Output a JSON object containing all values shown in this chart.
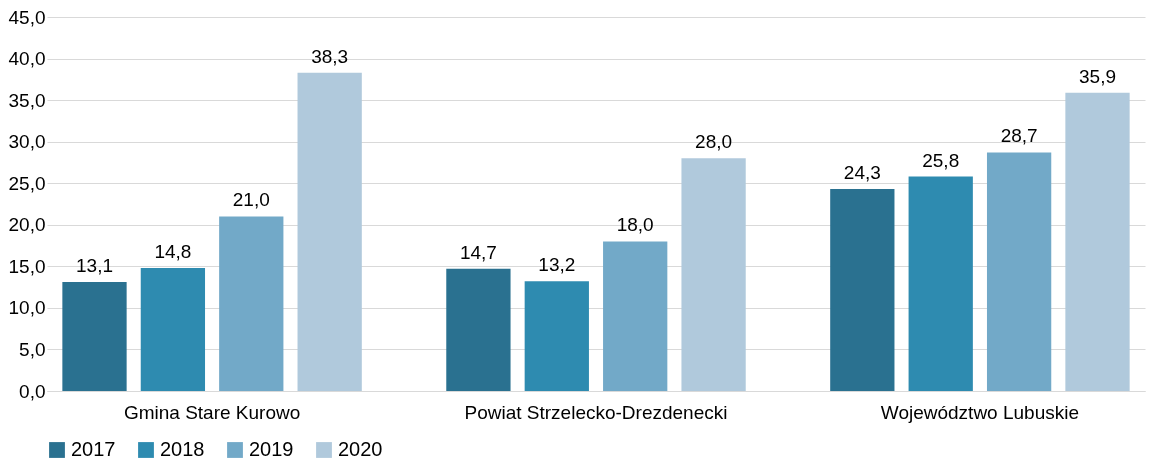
{
  "chart_data": {
    "type": "bar",
    "categories": [
      "Gmina Stare Kurowo",
      "Powiat Strzelecko-Drezdenecki",
      "Województwo Lubuskie"
    ],
    "series": [
      {
        "name": "2017",
        "color": "#2a7190",
        "values": [
          13.1,
          14.7,
          24.3
        ],
        "value_labels": [
          "13,1",
          "14,7",
          "24,3"
        ]
      },
      {
        "name": "2018",
        "color": "#2e8bb0",
        "values": [
          14.8,
          13.2,
          25.8
        ],
        "value_labels": [
          "14,8",
          "13,2",
          "25,8"
        ]
      },
      {
        "name": "2019",
        "color": "#72a9c8",
        "values": [
          21.0,
          18.0,
          28.7
        ],
        "value_labels": [
          "21,0",
          "18,0",
          "28,7"
        ]
      },
      {
        "name": "2020",
        "color": "#b0c9dc",
        "values": [
          38.3,
          28.0,
          35.9
        ],
        "value_labels": [
          "38,3",
          "28,0",
          "35,9"
        ]
      }
    ],
    "ylim": [
      0,
      45
    ],
    "yticks": [
      {
        "value": 0,
        "label": "0,0"
      },
      {
        "value": 5,
        "label": "5,0"
      },
      {
        "value": 10,
        "label": "10,0"
      },
      {
        "value": 15,
        "label": "15,0"
      },
      {
        "value": 20,
        "label": "20,0"
      },
      {
        "value": 25,
        "label": "25,0"
      },
      {
        "value": 30,
        "label": "30,0"
      },
      {
        "value": 35,
        "label": "35,0"
      },
      {
        "value": 40,
        "label": "40,0"
      },
      {
        "value": 45,
        "label": "45,0"
      }
    ],
    "grid": "y",
    "legend": "bottom"
  }
}
